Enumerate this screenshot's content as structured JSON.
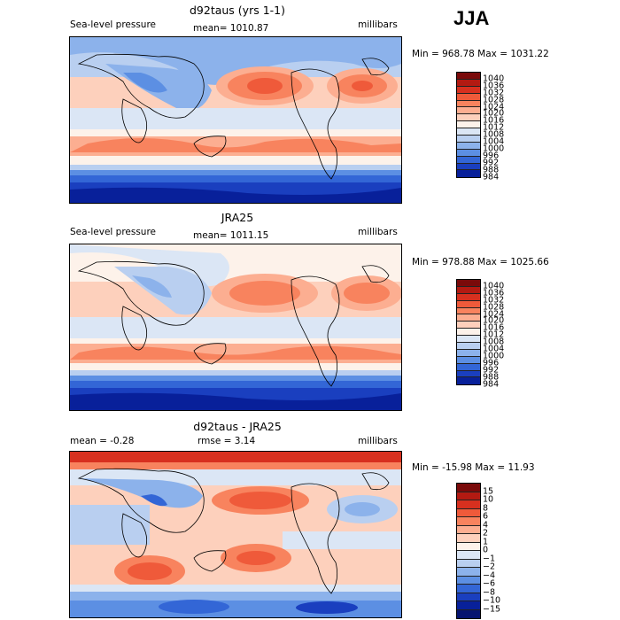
{
  "season": "JJA",
  "chart_data": [
    {
      "type": "heatmap",
      "title": "d92taus (yrs 1-1)",
      "left_label": "Sea-level pressure",
      "center_label": "mean= 1010.87",
      "right_label": "millibars",
      "minmax_label": "Min = 968.78 Max = 1031.22",
      "mean": 1010.87,
      "min": 968.78,
      "max": 1031.22,
      "units": "millibars",
      "colorbar_levels": [
        "1040",
        "1036",
        "1032",
        "1028",
        "1024",
        "1020",
        "1016",
        "1012",
        "1008",
        "1004",
        "1000",
        "996",
        "992",
        "988",
        "984"
      ]
    },
    {
      "type": "heatmap",
      "title": "JRA25",
      "left_label": "Sea-level pressure",
      "center_label": "mean= 1011.15",
      "right_label": "millibars",
      "minmax_label": "Min = 978.88 Max = 1025.66",
      "mean": 1011.15,
      "min": 978.88,
      "max": 1025.66,
      "units": "millibars",
      "colorbar_levels": [
        "1040",
        "1036",
        "1032",
        "1028",
        "1024",
        "1020",
        "1016",
        "1012",
        "1008",
        "1004",
        "1000",
        "996",
        "992",
        "988",
        "984"
      ]
    },
    {
      "type": "heatmap",
      "title": "d92taus - JRA25",
      "left_label": "mean =   -0.28",
      "center_label": "rmse =    3.14",
      "right_label": "millibars",
      "minmax_label": "Min = -15.98 Max =   11.93",
      "mean": -0.28,
      "rmse": 3.14,
      "min": -15.98,
      "max": 11.93,
      "units": "millibars",
      "colorbar_levels": [
        "15",
        "10",
        "8",
        "6",
        "4",
        "2",
        "1",
        "0",
        "−1",
        "−2",
        "−4",
        "−6",
        "−8",
        "−10",
        "−15"
      ]
    }
  ],
  "colors": {
    "palette": [
      "#7a0a0a",
      "#b31a12",
      "#d7301f",
      "#ef5a3a",
      "#f8835e",
      "#fcae91",
      "#fdd0bc",
      "#fdf2ea",
      "#dbe6f5",
      "#b9cff0",
      "#8cb2eb",
      "#5c8fe3",
      "#3366d6",
      "#1a3fbf",
      "#08209a"
    ]
  }
}
